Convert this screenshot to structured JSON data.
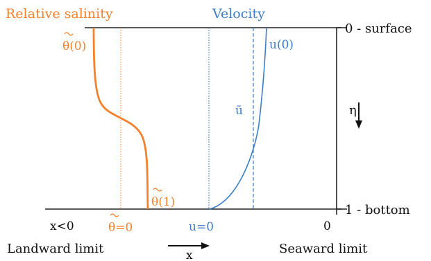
{
  "colors": {
    "salinity": "#f5812c",
    "velocity": "#3b7ec9",
    "axis": "#222222"
  },
  "headings": {
    "salinity": "Relative salinity",
    "velocity": "Velocity"
  },
  "depth_ticks": {
    "surface": "0 - surface",
    "bottom": "1 - bottom"
  },
  "depth_axis_symbol": "η",
  "curve_labels": {
    "theta_top": "θ(0)",
    "theta_bottom": "θ(1)",
    "theta_zero": "θ=0",
    "u_top": "u(0)",
    "u_mean": "ū",
    "u_zero": "u=0"
  },
  "x_axis": {
    "left_tick": "x<0",
    "right_tick": "0",
    "left_caption": "Landward limit",
    "right_caption": "Seaward limit",
    "symbol": "x"
  }
}
